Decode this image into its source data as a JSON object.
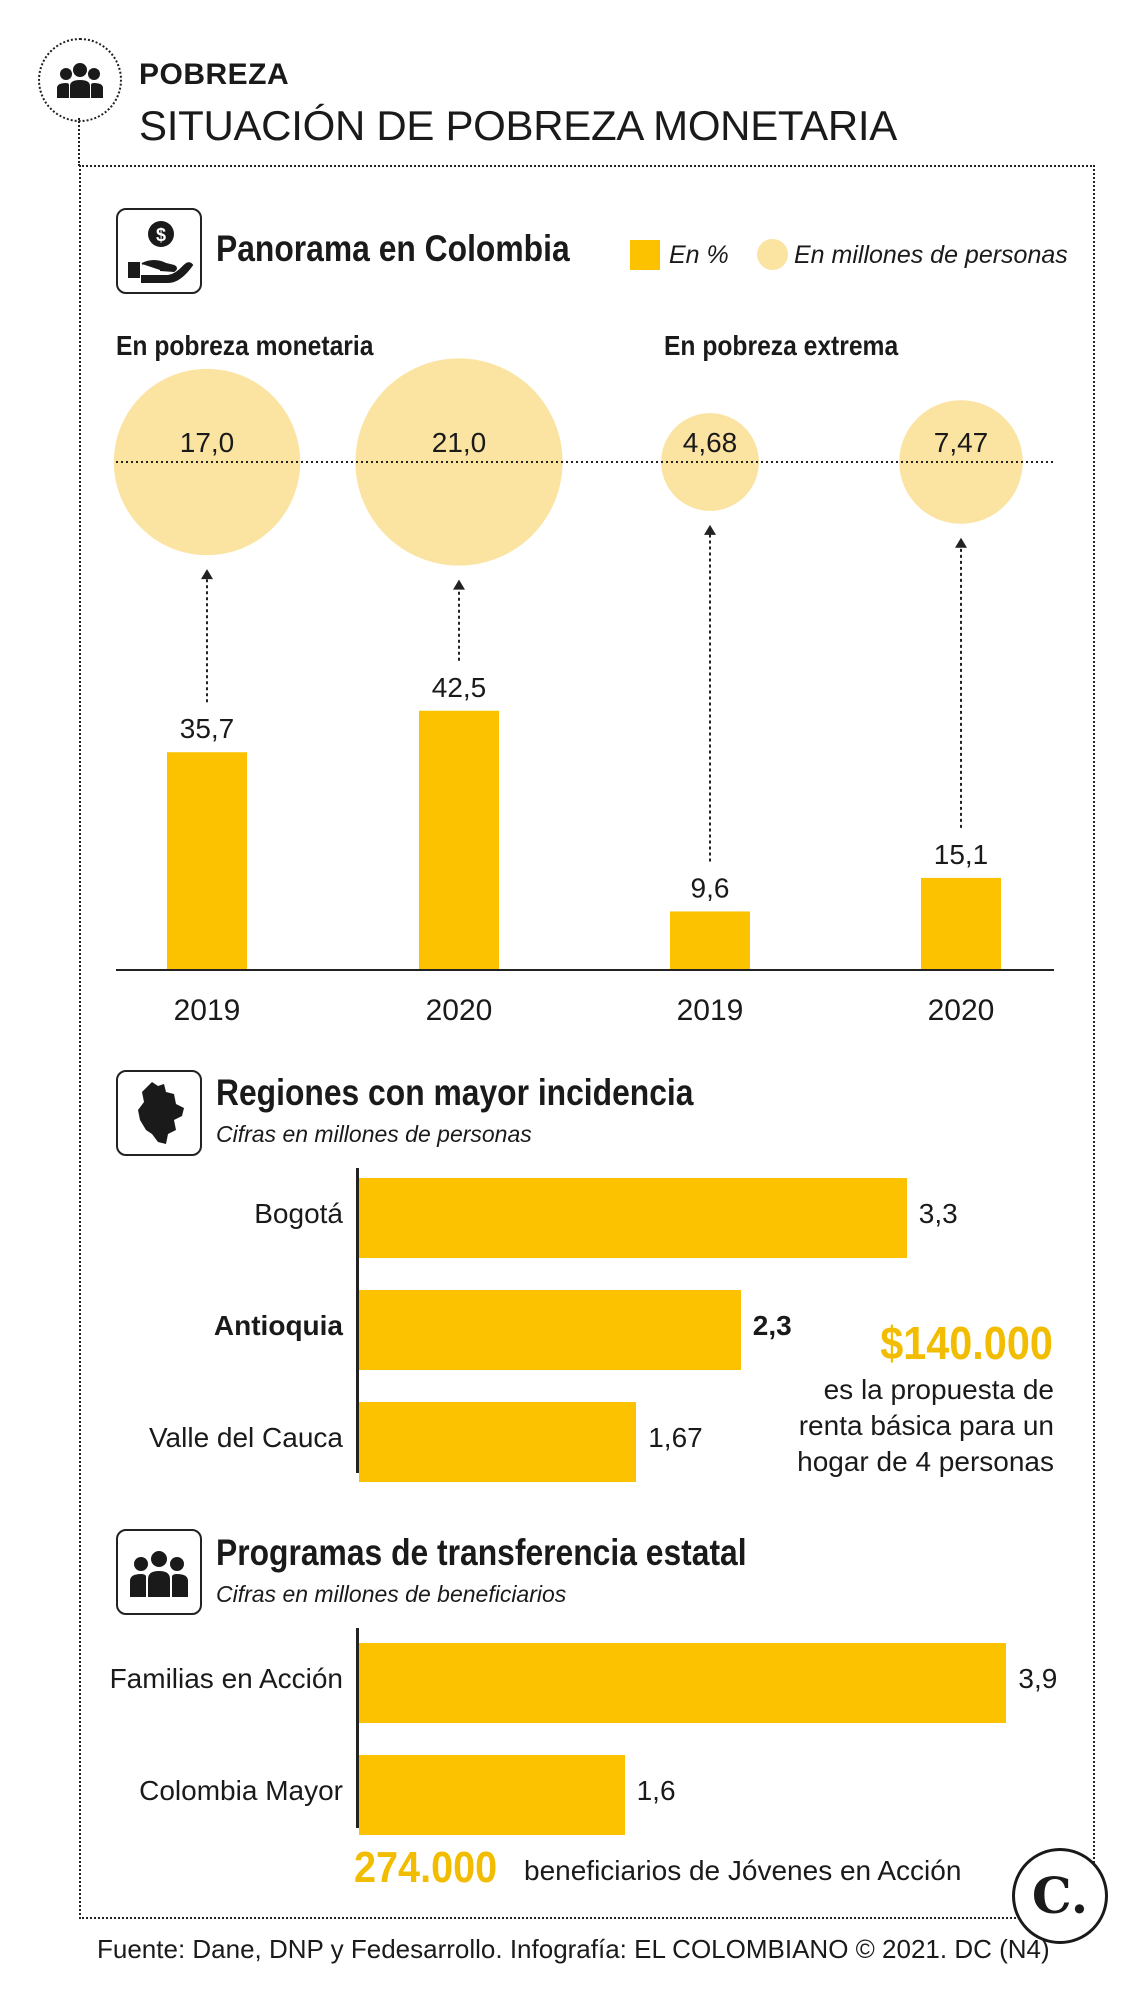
{
  "header": {
    "kicker": "POBREZA",
    "title": "SITUACIÓN DE POBREZA MONETARIA"
  },
  "colors": {
    "bar": "#fcc200",
    "bubble": "#fbe3a1",
    "accent": "#f2bd00",
    "text": "#1a1a1a"
  },
  "panorama": {
    "title": "Panorama en Colombia",
    "legend": {
      "percent": "En %",
      "people": "En millones de personas"
    },
    "groups": [
      "En pobreza monetaria",
      "En pobreza extrema"
    ]
  },
  "chart_data": [
    {
      "type": "bar",
      "title": "Panorama en Colombia",
      "categories": [
        "2019",
        "2020",
        "2019",
        "2020"
      ],
      "groups": [
        "En pobreza monetaria",
        "En pobreza monetaria",
        "En pobreza extrema",
        "En pobreza extrema"
      ],
      "series": [
        {
          "name": "En %",
          "values": [
            35.7,
            42.5,
            9.6,
            15.1
          ],
          "labels": [
            "35,7",
            "42,5",
            "9,6",
            "15,1"
          ]
        },
        {
          "name": "En millones de personas",
          "values": [
            17.0,
            21.0,
            4.68,
            7.47
          ],
          "labels": [
            "17,0",
            "21,0",
            "4,68",
            "7,47"
          ]
        }
      ]
    },
    {
      "type": "bar",
      "orientation": "horizontal",
      "title": "Regiones con mayor incidencia",
      "subtitle": "Cifras en millones de personas",
      "categories": [
        "Bogotá",
        "Antioquia",
        "Valle del Cauca"
      ],
      "values": [
        3.3,
        2.3,
        1.67
      ],
      "labels": [
        "3,3",
        "2,3",
        "1,67"
      ],
      "highlight": "Antioquia"
    },
    {
      "type": "bar",
      "orientation": "horizontal",
      "title": "Programas de transferencia estatal",
      "subtitle": "Cifras en millones de beneficiarios",
      "categories": [
        "Familias en Acción",
        "Colombia Mayor"
      ],
      "values": [
        3.9,
        1.6
      ],
      "labels": [
        "3,9",
        "1,6"
      ]
    }
  ],
  "regions": {
    "title": "Regiones con mayor incidencia",
    "subtitle": "Cifras en millones de personas"
  },
  "callout": {
    "amount": "$140.000",
    "text": "es la propuesta de renta básica para un hogar de 4 personas"
  },
  "programs": {
    "title": "Programas de transferencia estatal",
    "subtitle": "Cifras en millones de beneficiarios"
  },
  "jovenes": {
    "amount": "274.000",
    "text": "beneficiarios de Jóvenes en Acción"
  },
  "logo": {
    "letter": "C."
  },
  "source": "Fuente: Dane, DNP y Fedesarrollo. Infografía: EL COLOMBIANO © 2021. DC (N4)"
}
